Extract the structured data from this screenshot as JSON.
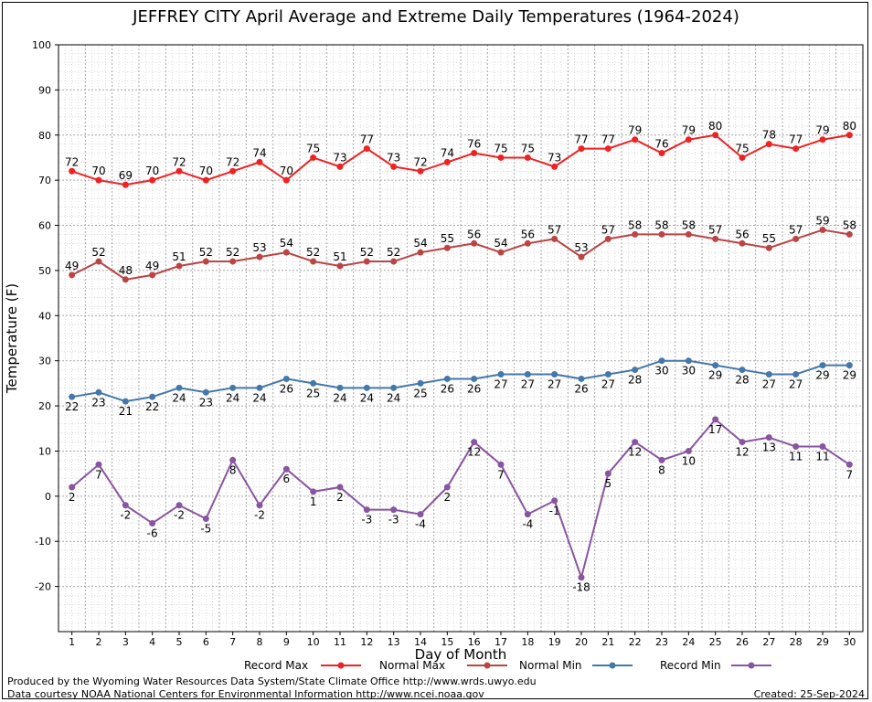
{
  "chart_data": {
    "type": "line",
    "title": "JEFFREY CITY April Average and Extreme Daily Temperatures (1964-2024)",
    "xlabel": "Day of Month",
    "ylabel": "Temperature (F)",
    "ylim": [
      -30,
      100
    ],
    "yticks": [
      -20,
      -10,
      0,
      10,
      20,
      30,
      40,
      50,
      60,
      70,
      80,
      90,
      100
    ],
    "xlim": [
      0,
      30
    ],
    "x": [
      1,
      2,
      3,
      4,
      5,
      6,
      7,
      8,
      9,
      10,
      11,
      12,
      13,
      14,
      15,
      16,
      17,
      18,
      19,
      20,
      21,
      22,
      23,
      24,
      25,
      26,
      27,
      28,
      29,
      30
    ],
    "grid": true,
    "legend_position": "bottom",
    "series": [
      {
        "name": "Record Max",
        "color": "#ee2222",
        "label_pos": "above",
        "values": [
          72,
          70,
          69,
          70,
          72,
          70,
          72,
          74,
          70,
          75,
          73,
          77,
          73,
          72,
          74,
          76,
          75,
          75,
          73,
          77,
          77,
          79,
          76,
          79,
          80,
          75,
          78,
          77,
          79,
          80
        ]
      },
      {
        "name": "Normal Max",
        "color": "#bb4444",
        "label_pos": "above",
        "values": [
          49,
          52,
          48,
          49,
          51,
          52,
          52,
          53,
          54,
          52,
          51,
          52,
          52,
          54,
          55,
          56,
          54,
          56,
          57,
          53,
          57,
          58,
          58,
          58,
          57,
          56,
          55,
          57,
          59,
          58
        ]
      },
      {
        "name": "Normal Min",
        "color": "#4477aa",
        "label_pos": "below",
        "values": [
          22,
          23,
          21,
          22,
          24,
          23,
          24,
          24,
          26,
          25,
          24,
          24,
          24,
          25,
          26,
          26,
          27,
          27,
          27,
          26,
          27,
          28,
          30,
          30,
          29,
          28,
          27,
          27,
          29,
          29
        ]
      },
      {
        "name": "Record Min",
        "color": "#8855a0",
        "label_pos": "below",
        "values": [
          2,
          7,
          -2,
          -6,
          -2,
          -5,
          8,
          -2,
          6,
          1,
          2,
          -3,
          -3,
          -4,
          2,
          12,
          7,
          -4,
          -1,
          -18,
          5,
          12,
          8,
          10,
          17,
          12,
          13,
          11,
          11,
          7
        ]
      }
    ]
  },
  "footer": {
    "produced_by": "Produced by the Wyoming Water Resources Data System/State Climate Office http://www.wrds.uwyo.edu",
    "courtesy": "Data courtesy NOAA National Centers for Environmental Information http://www.ncei.noaa.gov",
    "created": "Created:  25-Sep-2024"
  }
}
